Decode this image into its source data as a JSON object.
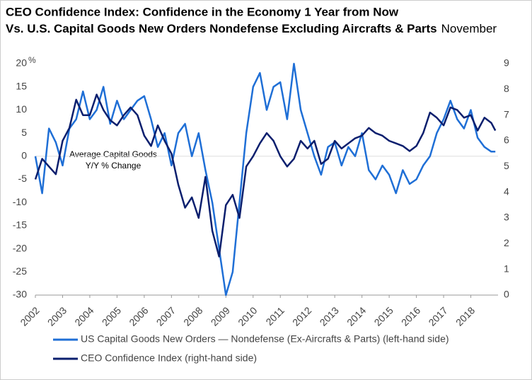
{
  "chart_data": {
    "type": "line",
    "title": [
      "CEO Confidence Index: Confidence in the Economy 1 Year from Now",
      "Vs. U.S. Capital Goods New Orders Nondefense Excluding Aircrafts & Parts"
    ],
    "title_date": "November",
    "ylabel": "%",
    "annotation": [
      "Average Capital Goods",
      "Y/Y % Change"
    ],
    "reference_line": 0,
    "xlim": [
      2002,
      2019
    ],
    "xticks": [
      2002,
      2003,
      2004,
      2005,
      2006,
      2007,
      2008,
      2009,
      2010,
      2011,
      2012,
      2013,
      2014,
      2015,
      2016,
      2017,
      2018
    ],
    "ylim": [
      -30,
      20
    ],
    "yticks": [
      -30,
      -25,
      -20,
      -15,
      -10,
      -5,
      0,
      5,
      10,
      15,
      20
    ],
    "y2lim": [
      0,
      9
    ],
    "y2ticks": [
      0,
      1,
      2,
      3,
      4,
      5,
      6,
      7,
      8,
      9
    ],
    "x": [
      2002,
      2002.25,
      2002.5,
      2002.75,
      2003,
      2003.25,
      2003.5,
      2003.75,
      2004,
      2004.25,
      2004.5,
      2004.75,
      2005,
      2005.25,
      2005.5,
      2005.75,
      2006,
      2006.25,
      2006.5,
      2006.75,
      2007,
      2007.25,
      2007.5,
      2007.75,
      2008,
      2008.25,
      2008.5,
      2008.75,
      2009,
      2009.25,
      2009.5,
      2009.75,
      2010,
      2010.25,
      2010.5,
      2010.75,
      2011,
      2011.25,
      2011.5,
      2011.75,
      2012,
      2012.25,
      2012.5,
      2012.75,
      2013,
      2013.25,
      2013.5,
      2013.75,
      2014,
      2014.25,
      2014.5,
      2014.75,
      2015,
      2015.25,
      2015.5,
      2015.75,
      2016,
      2016.25,
      2016.5,
      2016.75,
      2017,
      2017.25,
      2017.5,
      2017.75,
      2018,
      2018.25,
      2018.5,
      2018.75,
      2018.9
    ],
    "series": [
      {
        "name": "US Capital Goods New Orders — Nondefense (Ex-Aircrafts & Parts) (left-hand side)",
        "color": "#1f6fd6",
        "values": [
          0,
          -8,
          6,
          3,
          -2,
          6,
          8,
          14,
          8,
          10,
          15,
          7,
          12,
          8,
          10,
          12,
          13,
          8,
          2,
          5,
          -2,
          5,
          7,
          0,
          5,
          -3,
          -10,
          -20,
          -30,
          -25,
          -10,
          5,
          15,
          18,
          10,
          15,
          16,
          8,
          20,
          10,
          5,
          0,
          -4,
          2,
          3,
          -2,
          2,
          0,
          5,
          -3,
          -5,
          -2,
          -4,
          -8,
          -3,
          -6,
          -5,
          -2,
          0,
          5,
          8,
          12,
          8,
          6,
          10,
          4,
          2,
          1,
          1
        ]
      },
      {
        "name": "CEO Confidence Index (right-hand side)",
        "color": "#0b1f6e",
        "axis": "y2",
        "values": [
          4.5,
          5.3,
          5,
          4.7,
          6,
          6.5,
          7.6,
          7,
          7,
          7.8,
          7.2,
          6.8,
          6.6,
          7,
          7.3,
          7,
          6.2,
          5.8,
          6.6,
          6,
          5.5,
          4.3,
          3.4,
          3.8,
          3,
          4.6,
          2.5,
          1.5,
          3.5,
          3.9,
          3,
          5,
          5.4,
          5.9,
          6.3,
          6,
          5.4,
          5,
          5.3,
          6,
          5.7,
          6,
          5.1,
          5.3,
          6,
          5.7,
          5.9,
          6.1,
          6.2,
          6.5,
          6.3,
          6.2,
          6,
          5.9,
          5.8,
          5.6,
          5.8,
          6.3,
          7.1,
          6.9,
          6.6,
          7.3,
          7.2,
          6.9,
          7,
          6.4,
          6.9,
          6.7,
          6.4
        ]
      }
    ]
  }
}
